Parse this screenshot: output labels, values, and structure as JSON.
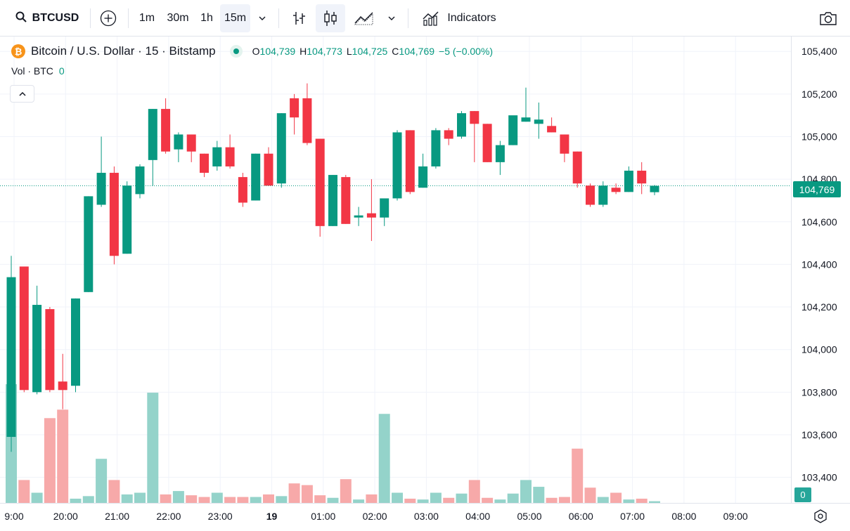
{
  "toolbar": {
    "symbol": "BTCUSD",
    "timeframes": [
      "1m",
      "30m",
      "1h",
      "15m"
    ],
    "active_timeframe": "15m",
    "indicators_label": "Indicators",
    "icons": [
      "search-icon",
      "add-compare-icon",
      "chevron-down-icon",
      "bar-style-icon",
      "candle-style-icon",
      "line-style-icon",
      "chevron-down-icon",
      "indicators-icon",
      "camera-icon"
    ]
  },
  "legend": {
    "coin_glyph": "₿",
    "title": "Bitcoin / U.S. Dollar · 15 · Bitstamp",
    "o_label": "O",
    "o": "104,739",
    "h_label": "H",
    "h": "104,773",
    "l_label": "L",
    "l": "104,725",
    "c_label": "C",
    "c": "104,769",
    "change": "−5 (−0.00%)",
    "vol_label": "Vol · BTC",
    "vol_value": "0"
  },
  "price_label": "104,769",
  "vol_label_value": "0",
  "colors": {
    "up": "#089981",
    "down": "#f23645",
    "up_vol": "#94d3ca",
    "down_vol": "#f7a9a9",
    "grid": "#f0f3fa",
    "axis": "#e0e3eb"
  },
  "chart_data": {
    "type": "candlestick",
    "title": "Bitcoin / U.S. Dollar · 15 · Bitstamp",
    "interval": "15m",
    "ylim": [
      103280,
      105470
    ],
    "y_ticks": [
      "105,400",
      "105,200",
      "105,000",
      "104,800",
      "104,600",
      "104,400",
      "104,200",
      "104,000",
      "103,800",
      "103,600",
      "103,400"
    ],
    "x_ticks": [
      "9:00",
      "20:00",
      "21:00",
      "22:00",
      "23:00",
      "19",
      "01:00",
      "02:00",
      "03:00",
      "04:00",
      "05:00",
      "06:00",
      "07:00",
      "08:00",
      "09:00"
    ],
    "last_price": 104769,
    "candles": [
      {
        "o": 103590,
        "h": 104440,
        "l": 103520,
        "c": 104340,
        "v": 1.4
      },
      {
        "o": 104390,
        "h": 104390,
        "l": 103800,
        "c": 103810,
        "v": 0.27
      },
      {
        "o": 103800,
        "h": 104300,
        "l": 103790,
        "c": 104210,
        "v": 0.12
      },
      {
        "o": 104190,
        "h": 104200,
        "l": 103800,
        "c": 103810,
        "v": 1.0
      },
      {
        "o": 103850,
        "h": 103980,
        "l": 103720,
        "c": 103810,
        "v": 1.1
      },
      {
        "o": 103830,
        "h": 104240,
        "l": 103800,
        "c": 104240,
        "v": 0.05
      },
      {
        "o": 104270,
        "h": 104720,
        "l": 104270,
        "c": 104720,
        "v": 0.08
      },
      {
        "o": 104680,
        "h": 105000,
        "l": 104670,
        "c": 104830,
        "v": 0.52
      },
      {
        "o": 104830,
        "h": 104860,
        "l": 104400,
        "c": 104440,
        "v": 0.27
      },
      {
        "o": 104450,
        "h": 104790,
        "l": 104450,
        "c": 104770,
        "v": 0.1
      },
      {
        "o": 104730,
        "h": 104870,
        "l": 104710,
        "c": 104860,
        "v": 0.12
      },
      {
        "o": 104890,
        "h": 105130,
        "l": 104770,
        "c": 105130,
        "v": 1.3
      },
      {
        "o": 105130,
        "h": 105180,
        "l": 104920,
        "c": 104930,
        "v": 0.1
      },
      {
        "o": 104940,
        "h": 105020,
        "l": 104880,
        "c": 105010,
        "v": 0.14
      },
      {
        "o": 105010,
        "h": 105010,
        "l": 104880,
        "c": 104930,
        "v": 0.09
      },
      {
        "o": 104920,
        "h": 104920,
        "l": 104810,
        "c": 104830,
        "v": 0.07
      },
      {
        "o": 104860,
        "h": 104980,
        "l": 104840,
        "c": 104950,
        "v": 0.12
      },
      {
        "o": 104950,
        "h": 105010,
        "l": 104850,
        "c": 104860,
        "v": 0.07
      },
      {
        "o": 104810,
        "h": 104830,
        "l": 104670,
        "c": 104690,
        "v": 0.07
      },
      {
        "o": 104700,
        "h": 104920,
        "l": 104700,
        "c": 104920,
        "v": 0.07
      },
      {
        "o": 104920,
        "h": 104950,
        "l": 104770,
        "c": 104770,
        "v": 0.1
      },
      {
        "o": 104780,
        "h": 105110,
        "l": 104760,
        "c": 105110,
        "v": 0.08
      },
      {
        "o": 105180,
        "h": 105200,
        "l": 105010,
        "c": 105090,
        "v": 0.23
      },
      {
        "o": 105180,
        "h": 105250,
        "l": 104960,
        "c": 104970,
        "v": 0.21
      },
      {
        "o": 104990,
        "h": 104990,
        "l": 104530,
        "c": 104580,
        "v": 0.09
      },
      {
        "o": 104580,
        "h": 104820,
        "l": 104580,
        "c": 104820,
        "v": 0.06
      },
      {
        "o": 104810,
        "h": 104820,
        "l": 104590,
        "c": 104590,
        "v": 0.28
      },
      {
        "o": 104620,
        "h": 104670,
        "l": 104580,
        "c": 104630,
        "v": 0.04
      },
      {
        "o": 104640,
        "h": 104800,
        "l": 104510,
        "c": 104620,
        "v": 0.1
      },
      {
        "o": 104620,
        "h": 104690,
        "l": 104580,
        "c": 104710,
        "v": 1.05
      },
      {
        "o": 104710,
        "h": 105030,
        "l": 104700,
        "c": 105020,
        "v": 0.12
      },
      {
        "o": 105030,
        "h": 105030,
        "l": 104730,
        "c": 104740,
        "v": 0.05
      },
      {
        "o": 104760,
        "h": 104920,
        "l": 104760,
        "c": 104860,
        "v": 0.04
      },
      {
        "o": 104860,
        "h": 105040,
        "l": 104850,
        "c": 105030,
        "v": 0.12
      },
      {
        "o": 105030,
        "h": 105040,
        "l": 104960,
        "c": 104990,
        "v": 0.06
      },
      {
        "o": 105000,
        "h": 105120,
        "l": 104990,
        "c": 105110,
        "v": 0.11
      },
      {
        "o": 105120,
        "h": 105120,
        "l": 104880,
        "c": 105060,
        "v": 0.27
      },
      {
        "o": 105060,
        "h": 105060,
        "l": 104880,
        "c": 104880,
        "v": 0.06
      },
      {
        "o": 104880,
        "h": 104980,
        "l": 104820,
        "c": 104960,
        "v": 0.04
      },
      {
        "o": 104960,
        "h": 105090,
        "l": 104960,
        "c": 105100,
        "v": 0.11
      },
      {
        "o": 105070,
        "h": 105230,
        "l": 105070,
        "c": 105090,
        "v": 0.27
      },
      {
        "o": 105060,
        "h": 105160,
        "l": 104990,
        "c": 105080,
        "v": 0.19
      },
      {
        "o": 105050,
        "h": 105090,
        "l": 105020,
        "c": 105020,
        "v": 0.06
      },
      {
        "o": 105010,
        "h": 105010,
        "l": 104880,
        "c": 104920,
        "v": 0.07
      },
      {
        "o": 104930,
        "h": 104930,
        "l": 104760,
        "c": 104780,
        "v": 0.64
      },
      {
        "o": 104770,
        "h": 104780,
        "l": 104670,
        "c": 104680,
        "v": 0.18
      },
      {
        "o": 104680,
        "h": 104790,
        "l": 104670,
        "c": 104770,
        "v": 0.07
      },
      {
        "o": 104760,
        "h": 104780,
        "l": 104730,
        "c": 104740,
        "v": 0.12
      },
      {
        "o": 104740,
        "h": 104860,
        "l": 104740,
        "c": 104840,
        "v": 0.04
      },
      {
        "o": 104840,
        "h": 104880,
        "l": 104730,
        "c": 104780,
        "v": 0.05
      },
      {
        "o": 104739,
        "h": 104773,
        "l": 104725,
        "c": 104769,
        "v": 0.02
      }
    ]
  }
}
